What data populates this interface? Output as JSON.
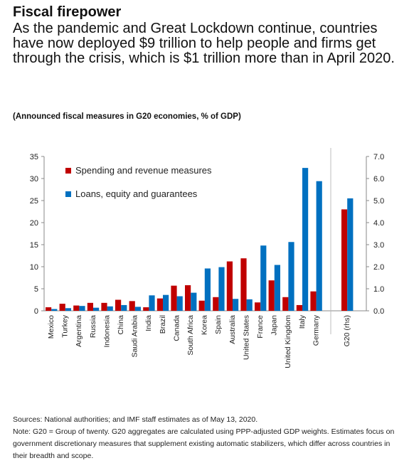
{
  "header": {
    "title": "Fiscal firepower",
    "lede": "As the pandemic and Great Lockdown continue, countries have now deployed $9 trillion to help people and firms get through the crisis, which is $1 trillion more than in April 2020."
  },
  "chart_subtitle": "(Announced fiscal measures in G20 economies, % of GDP)",
  "chart_data": {
    "type": "bar",
    "categories": [
      "Mexico",
      "Turkey",
      "Argentina",
      "Russia",
      "Indonesia",
      "China",
      "Saudi Arabia",
      "India",
      "Brazil",
      "Canada",
      "South Africa",
      "Korea",
      "Spain",
      "Australia",
      "United States",
      "France",
      "Japan",
      "United Kingdom",
      "Italy",
      "Germany"
    ],
    "series": [
      {
        "name": "Spending and revenue measures",
        "color": "#c00000",
        "values": [
          0.8,
          1.6,
          1.2,
          1.8,
          1.8,
          2.5,
          2.2,
          0.8,
          2.8,
          5.7,
          5.8,
          2.3,
          3.1,
          11.2,
          11.9,
          1.9,
          6.9,
          3.1,
          1.3,
          4.4
        ]
      },
      {
        "name": "Loans, equity and guarantees",
        "color": "#0070c0",
        "values": [
          0.4,
          0.6,
          1.1,
          0.7,
          1.0,
          1.3,
          0.9,
          3.5,
          3.6,
          3.3,
          4.1,
          9.6,
          9.9,
          2.7,
          2.6,
          14.8,
          10.4,
          15.6,
          32.4,
          29.4
        ]
      }
    ],
    "rhs": {
      "category": "G20 (rhs)",
      "values": [
        4.6,
        5.1
      ],
      "ylim": [
        0,
        7
      ],
      "ticks": [
        "0.0",
        "1.0",
        "2.0",
        "3.0",
        "4.0",
        "5.0",
        "6.0",
        "7.0"
      ]
    },
    "ylim": [
      0,
      35
    ],
    "yticks": [
      "0",
      "5",
      "10",
      "15",
      "20",
      "25",
      "30",
      "35"
    ],
    "legend_position": "top-left"
  },
  "notes": {
    "sources": "Sources: National authorities; and IMF staff estimates as of May 13, 2020.",
    "note": "Note: G20 = Group of twenty. G20 aggregates are calculated using PPP-adjusted GDP weights. Estimates focus on government discretionary measures that supplement existing automatic stabilizers, which differ across countries in their breadth and scope."
  }
}
